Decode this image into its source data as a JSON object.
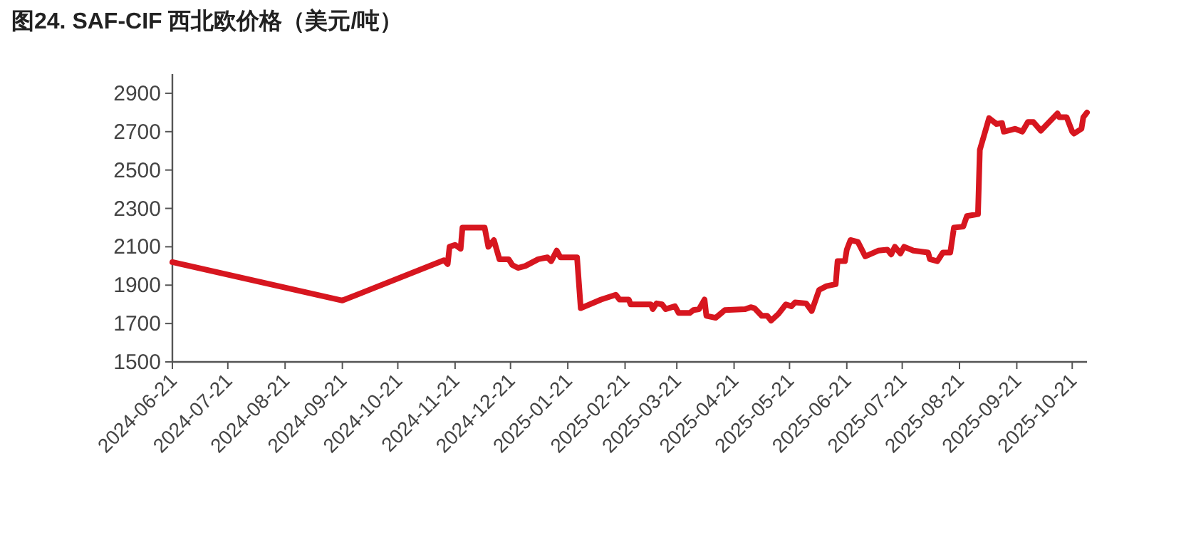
{
  "chart_data": {
    "type": "line",
    "title": "图24. SAF-CIF 西北欧价格（美元/吨）",
    "series": [
      {
        "color": "#d7161f",
        "x": [
          "2024-06-21",
          "2024-09-21",
          "2024-11-15",
          "2024-11-17",
          "2024-11-18",
          "2024-11-21",
          "2024-11-24",
          "2024-11-25",
          "2024-12-07",
          "2024-12-09",
          "2024-12-12",
          "2024-12-15",
          "2024-12-20",
          "2024-12-22",
          "2024-12-25",
          "2024-12-29",
          "2025-01-05",
          "2025-01-10",
          "2025-01-12",
          "2025-01-15",
          "2025-01-17",
          "2025-01-26",
          "2025-01-28",
          "2025-02-08",
          "2025-02-16",
          "2025-02-18",
          "2025-02-23",
          "2025-02-24",
          "2025-03-07",
          "2025-03-08",
          "2025-03-10",
          "2025-03-13",
          "2025-03-15",
          "2025-03-20",
          "2025-03-22",
          "2025-03-28",
          "2025-03-30",
          "2025-04-02",
          "2025-04-05",
          "2025-04-06",
          "2025-04-11",
          "2025-04-16",
          "2025-04-27",
          "2025-04-30",
          "2025-05-02",
          "2025-05-06",
          "2025-05-09",
          "2025-05-11",
          "2025-05-15",
          "2025-05-19",
          "2025-05-22",
          "2025-05-24",
          "2025-05-30",
          "2025-06-02",
          "2025-06-06",
          "2025-06-10",
          "2025-06-15",
          "2025-06-16",
          "2025-06-20",
          "2025-06-21",
          "2025-06-23",
          "2025-06-27",
          "2025-07-01",
          "2025-07-08",
          "2025-07-13",
          "2025-07-15",
          "2025-07-17",
          "2025-07-20",
          "2025-07-22",
          "2025-07-27",
          "2025-08-04",
          "2025-08-05",
          "2025-08-09",
          "2025-08-12",
          "2025-08-16",
          "2025-08-18",
          "2025-08-23",
          "2025-08-25",
          "2025-08-31",
          "2025-09-01",
          "2025-09-06",
          "2025-09-10",
          "2025-09-13",
          "2025-09-14",
          "2025-09-20",
          "2025-09-24",
          "2025-09-27",
          "2025-09-30",
          "2025-10-04",
          "2025-10-13",
          "2025-10-14",
          "2025-10-18",
          "2025-10-21",
          "2025-10-22",
          "2025-10-26",
          "2025-10-27",
          "2025-10-29"
        ],
        "values": [
          2020,
          1820,
          2030,
          2010,
          2100,
          2110,
          2090,
          2200,
          2200,
          2100,
          2135,
          2035,
          2035,
          2005,
          1990,
          2000,
          2035,
          2045,
          2025,
          2080,
          2045,
          2045,
          1780,
          1825,
          1850,
          1825,
          1825,
          1800,
          1800,
          1775,
          1805,
          1800,
          1775,
          1790,
          1755,
          1755,
          1770,
          1775,
          1825,
          1740,
          1730,
          1770,
          1775,
          1785,
          1780,
          1740,
          1740,
          1715,
          1750,
          1800,
          1790,
          1810,
          1805,
          1765,
          1875,
          1895,
          1905,
          2025,
          2025,
          2085,
          2135,
          2125,
          2050,
          2080,
          2085,
          2060,
          2100,
          2065,
          2100,
          2080,
          2070,
          2035,
          2025,
          2070,
          2070,
          2200,
          2205,
          2260,
          2270,
          2605,
          2770,
          2740,
          2745,
          2700,
          2715,
          2700,
          2750,
          2750,
          2705,
          2795,
          2775,
          2775,
          2700,
          2690,
          2715,
          2775,
          2800
        ]
      }
    ],
    "xlim": [
      "2024-06-21",
      "2025-10-29"
    ],
    "xticks": [
      "2024-06-21",
      "2024-07-21",
      "2024-08-21",
      "2024-09-21",
      "2024-10-21",
      "2024-11-21",
      "2024-12-21",
      "2025-01-21",
      "2025-02-21",
      "2025-03-21",
      "2025-04-21",
      "2025-05-21",
      "2025-06-21",
      "2025-07-21",
      "2025-08-21",
      "2025-09-21",
      "2025-10-21"
    ],
    "ylim": [
      1500,
      3000
    ],
    "yticks": [
      1500,
      1700,
      1900,
      2100,
      2300,
      2500,
      2700,
      2900
    ],
    "line_style": "solid"
  }
}
